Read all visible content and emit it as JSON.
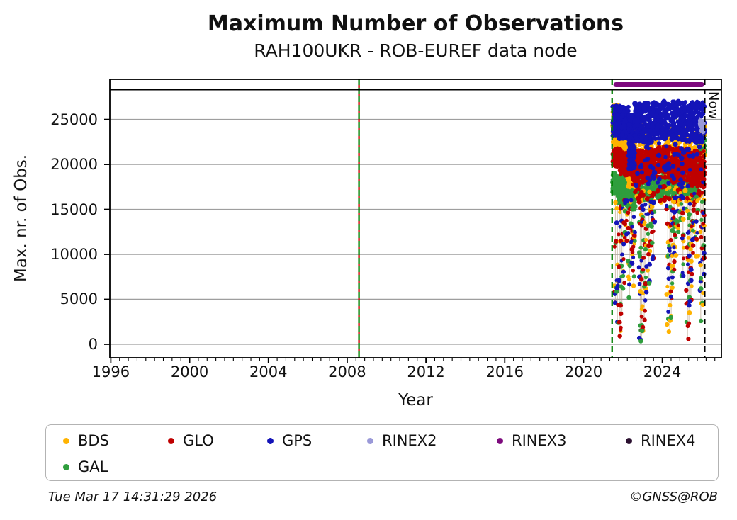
{
  "header": {
    "title": "Maximum Number of Observations",
    "subtitle": "RAH100UKR - ROB-EUREF data node"
  },
  "footer": {
    "timestamp": "Tue Mar 17 14:31:29 2026",
    "credit": "©GNSS@ROB"
  },
  "legend": {
    "items": [
      {
        "label": "BDS",
        "color": "#ffb300"
      },
      {
        "label": "GLO",
        "color": "#bf0000"
      },
      {
        "label": "GPS",
        "color": "#1414b8"
      },
      {
        "label": "RINEX2",
        "color": "#9a99d8"
      },
      {
        "label": "RINEX3",
        "color": "#7d0a7d"
      },
      {
        "label": "RINEX4",
        "color": "#2b1030"
      },
      {
        "label": "GAL",
        "color": "#2f9e3d"
      }
    ]
  },
  "chart_data": {
    "type": "scatter",
    "title": "Maximum Number of Observations",
    "subtitle": "RAH100UKR - ROB-EUREF data node",
    "xlabel": "Year",
    "ylabel": "Max. nr. of Obs.",
    "xlim": [
      1995.95,
      2027.0
    ],
    "ylim": [
      -1500,
      29460
    ],
    "xticks": [
      1996,
      2000,
      2004,
      2008,
      2012,
      2016,
      2020,
      2024
    ],
    "yticks": [
      0,
      5000,
      10000,
      15000,
      20000,
      25000
    ],
    "x_minor_per_major": 9,
    "grid": true,
    "grid_color": "#9e9e9e",
    "header_line_value": 28300,
    "now_label": "Now",
    "vlines": [
      {
        "name": "event-2008",
        "x": 2008.6,
        "style": "dashed",
        "colors": [
          "#007f00",
          "#cc0000"
        ]
      },
      {
        "name": "data-start",
        "x": 2021.45,
        "style": "dashed",
        "colors": [
          "#007f00"
        ]
      },
      {
        "name": "now-line",
        "x": 2026.15,
        "style": "dashed",
        "colors": [
          "#000000"
        ],
        "label": "Now"
      }
    ],
    "era_bars": [
      {
        "name": "RINEX3",
        "x0": 2021.5,
        "x1": 2026.15,
        "value": 28870,
        "color": "#7d0a7d"
      }
    ],
    "dip_line_color": "rgba(185,165,140,0.6)",
    "dip_top_value": 18500,
    "dip_colors": [
      "#ffb300",
      "#2f9e3d",
      "#bf0000",
      "#1414b8"
    ],
    "dips": [
      [
        2021.62,
        4600
      ],
      [
        2021.72,
        2400
      ],
      [
        2021.85,
        900
      ],
      [
        2021.95,
        3400
      ],
      [
        2022.05,
        6200
      ],
      [
        2022.15,
        11500
      ],
      [
        2022.33,
        5200
      ],
      [
        2022.45,
        9000
      ],
      [
        2022.55,
        6500
      ],
      [
        2022.88,
        700
      ],
      [
        2022.95,
        350
      ],
      [
        2023.02,
        1500
      ],
      [
        2023.08,
        2700
      ],
      [
        2023.15,
        5800
      ],
      [
        2023.32,
        6800
      ],
      [
        2023.42,
        11000
      ],
      [
        2023.55,
        9500
      ],
      [
        2024.28,
        2200
      ],
      [
        2024.38,
        1400
      ],
      [
        2024.45,
        3000
      ],
      [
        2024.55,
        6300
      ],
      [
        2024.62,
        9200
      ],
      [
        2024.78,
        12500
      ],
      [
        2024.95,
        13800
      ],
      [
        2025.05,
        7600
      ],
      [
        2025.28,
        600
      ],
      [
        2025.35,
        2300
      ],
      [
        2025.45,
        4800
      ],
      [
        2025.52,
        7100
      ],
      [
        2025.62,
        11800
      ],
      [
        2025.75,
        9800
      ],
      [
        2025.95,
        2600
      ],
      [
        2026.02,
        4400
      ],
      [
        2026.08,
        7800
      ]
    ],
    "series": [
      {
        "name": "GAL",
        "color": "#2f9e3d",
        "bands": [
          [
            2021.48,
            2021.75,
            16800,
            19000,
            90
          ],
          [
            2021.75,
            2022.15,
            15600,
            18700,
            120
          ],
          [
            2022.15,
            2022.65,
            15200,
            18000,
            110
          ],
          [
            2022.65,
            2023.4,
            16000,
            19600,
            130
          ],
          [
            2023.4,
            2024.6,
            16200,
            19800,
            160
          ],
          [
            2024.6,
            2025.55,
            16500,
            20000,
            140
          ],
          [
            2025.55,
            2025.95,
            16800,
            20000,
            70
          ],
          [
            2025.8,
            2026.15,
            20500,
            23400,
            80
          ]
        ]
      },
      {
        "name": "BDS",
        "color": "#ffb300",
        "bands": [
          [
            2021.48,
            2021.8,
            21800,
            26600,
            130
          ],
          [
            2021.8,
            2022.2,
            20500,
            25500,
            120
          ],
          [
            2022.2,
            2022.65,
            17500,
            24000,
            100
          ],
          [
            2022.65,
            2026.15,
            19000,
            24500,
            240
          ],
          [
            2022.2,
            2026.1,
            15500,
            19500,
            45
          ]
        ]
      },
      {
        "name": "GLO",
        "color": "#bf0000",
        "bands": [
          [
            2021.48,
            2021.85,
            19800,
            21800,
            120
          ],
          [
            2021.85,
            2022.45,
            18800,
            21300,
            140
          ],
          [
            2022.45,
            2023.2,
            18000,
            21500,
            150
          ],
          [
            2023.2,
            2024.4,
            18500,
            22000,
            180
          ],
          [
            2024.4,
            2025.4,
            18200,
            21800,
            160
          ],
          [
            2025.4,
            2026.15,
            17500,
            21500,
            140
          ],
          [
            2022.5,
            2026.1,
            15800,
            18500,
            50
          ]
        ]
      },
      {
        "name": "GPS",
        "color": "#1414b8",
        "bands": [
          [
            2021.48,
            2021.8,
            23200,
            26500,
            130
          ],
          [
            2021.8,
            2022.3,
            22800,
            26500,
            150
          ],
          [
            2022.3,
            2022.6,
            19500,
            25500,
            120
          ],
          [
            2022.6,
            2023.5,
            22500,
            26800,
            200
          ],
          [
            2023.5,
            2024.8,
            22800,
            27000,
            220
          ],
          [
            2024.8,
            2026.15,
            22500,
            27000,
            220
          ],
          [
            2022.6,
            2026.1,
            17500,
            22500,
            60
          ]
        ]
      },
      {
        "name": "RINEX2",
        "color": "#9a99d8",
        "bands": [
          [
            2025.92,
            2026.1,
            23600,
            24900,
            14
          ]
        ]
      }
    ]
  }
}
